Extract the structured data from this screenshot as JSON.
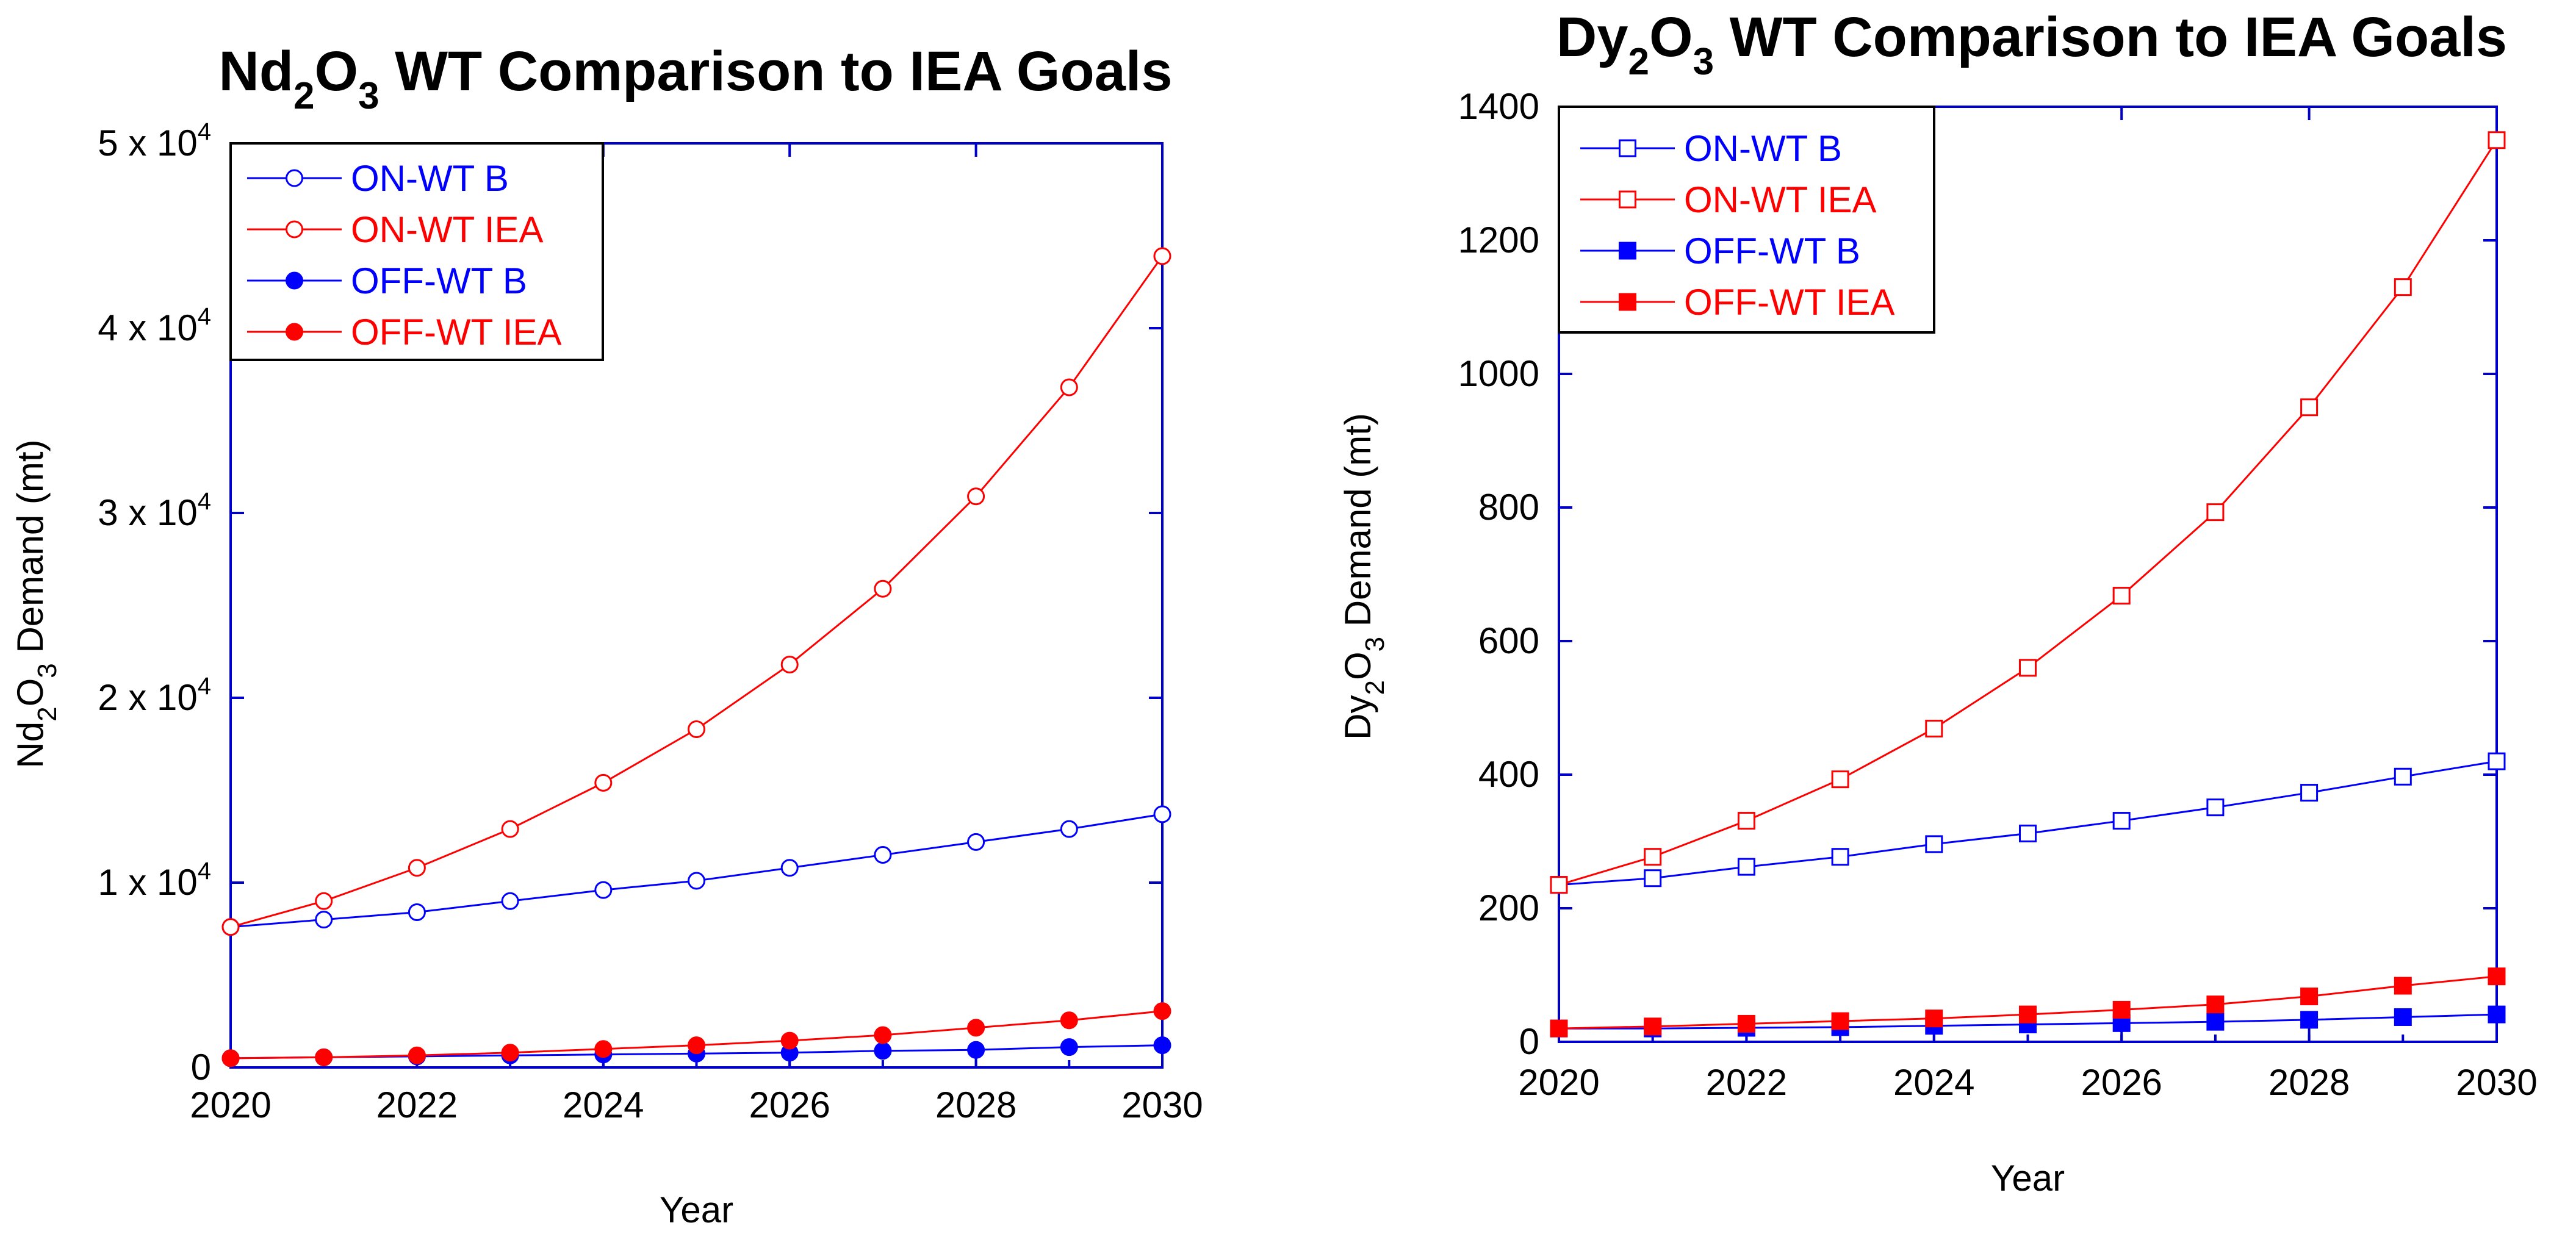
{
  "chart_data": [
    {
      "type": "line",
      "title": {
        "prefix": "Nd",
        "sub1": "2",
        "mid": "O",
        "sub2": "3",
        "suffix": " WT Comparison to IEA Goals"
      },
      "xlabel": "Year",
      "ylabel": {
        "prefix": "Nd",
        "sub1": "2",
        "mid": "O",
        "sub2": "3",
        "suffix": " Demand (mt)"
      },
      "x": [
        2020,
        2021,
        2022,
        2023,
        2024,
        2025,
        2026,
        2027,
        2028,
        2029,
        2030
      ],
      "xlim": [
        2020,
        2030
      ],
      "ylim": [
        0,
        50000
      ],
      "x_ticks": [
        "2020",
        "2022",
        "2024",
        "2026",
        "2028",
        "2030"
      ],
      "y_ticks": [
        {
          "value": 0,
          "label": "0",
          "exp": ""
        },
        {
          "value": 10000,
          "label": "1 x 10",
          "exp": "4"
        },
        {
          "value": 20000,
          "label": "2 x 10",
          "exp": "4"
        },
        {
          "value": 30000,
          "label": "3 x 10",
          "exp": "4"
        },
        {
          "value": 40000,
          "label": "4 x 10",
          "exp": "4"
        },
        {
          "value": 50000,
          "label": "5 x 10",
          "exp": "4"
        }
      ],
      "legend_position": "top-left",
      "marker": "circle",
      "series": [
        {
          "name": "ON-WT B",
          "color": "#0000ff",
          "filled": false,
          "values": [
            7600,
            8000,
            8400,
            9000,
            9600,
            10100,
            10800,
            11500,
            12200,
            12900,
            13700
          ]
        },
        {
          "name": "ON-WT IEA",
          "color": "#ff0000",
          "filled": false,
          "values": [
            7600,
            9000,
            10800,
            12900,
            15400,
            18300,
            21800,
            25900,
            30900,
            36800,
            43900
          ]
        },
        {
          "name": "OFF-WT B",
          "color": "#0000ff",
          "filled": true,
          "values": [
            500,
            550,
            600,
            650,
            700,
            750,
            800,
            900,
            950,
            1100,
            1200
          ]
        },
        {
          "name": "OFF-WT IEA",
          "color": "#ff0000",
          "filled": true,
          "values": [
            500,
            550,
            650,
            800,
            1000,
            1200,
            1450,
            1750,
            2150,
            2550,
            3050
          ]
        }
      ]
    },
    {
      "type": "line",
      "title": {
        "prefix": "Dy",
        "sub1": "2",
        "mid": "O",
        "sub2": "3",
        "suffix": " WT Comparison to IEA Goals"
      },
      "xlabel": "Year",
      "ylabel": {
        "prefix": "Dy",
        "sub1": "2",
        "mid": "O",
        "sub2": "3",
        "suffix": " Demand (mt)"
      },
      "x": [
        2020,
        2021,
        2022,
        2023,
        2024,
        2025,
        2026,
        2027,
        2028,
        2029,
        2030
      ],
      "xlim": [
        2020,
        2030
      ],
      "ylim": [
        0,
        1400
      ],
      "x_ticks": [
        "2020",
        "2022",
        "2024",
        "2026",
        "2028",
        "2030"
      ],
      "y_ticks": [
        {
          "value": 0,
          "label": "0",
          "exp": ""
        },
        {
          "value": 200,
          "label": "200",
          "exp": ""
        },
        {
          "value": 400,
          "label": "400",
          "exp": ""
        },
        {
          "value": 600,
          "label": "600",
          "exp": ""
        },
        {
          "value": 800,
          "label": "800",
          "exp": ""
        },
        {
          "value": 1000,
          "label": "1000",
          "exp": ""
        },
        {
          "value": 1200,
          "label": "1200",
          "exp": ""
        },
        {
          "value": 1400,
          "label": "1400",
          "exp": ""
        }
      ],
      "legend_position": "top-left",
      "marker": "square",
      "series": [
        {
          "name": "ON-WT B",
          "color": "#0000ff",
          "filled": false,
          "values": [
            235,
            245,
            262,
            277,
            296,
            312,
            331,
            351,
            373,
            397,
            420
          ]
        },
        {
          "name": "ON-WT IEA",
          "color": "#ff0000",
          "filled": false,
          "values": [
            235,
            277,
            331,
            393,
            469,
            560,
            668,
            793,
            950,
            1130,
            1350
          ]
        },
        {
          "name": "OFF-WT B",
          "color": "#0000ff",
          "filled": true,
          "values": [
            20,
            20,
            21,
            22,
            24,
            26,
            28,
            30,
            33,
            37,
            41
          ]
        },
        {
          "name": "OFF-WT IEA",
          "color": "#ff0000",
          "filled": true,
          "values": [
            20,
            23,
            27,
            31,
            35,
            41,
            48,
            56,
            68,
            84,
            98
          ]
        }
      ]
    }
  ]
}
